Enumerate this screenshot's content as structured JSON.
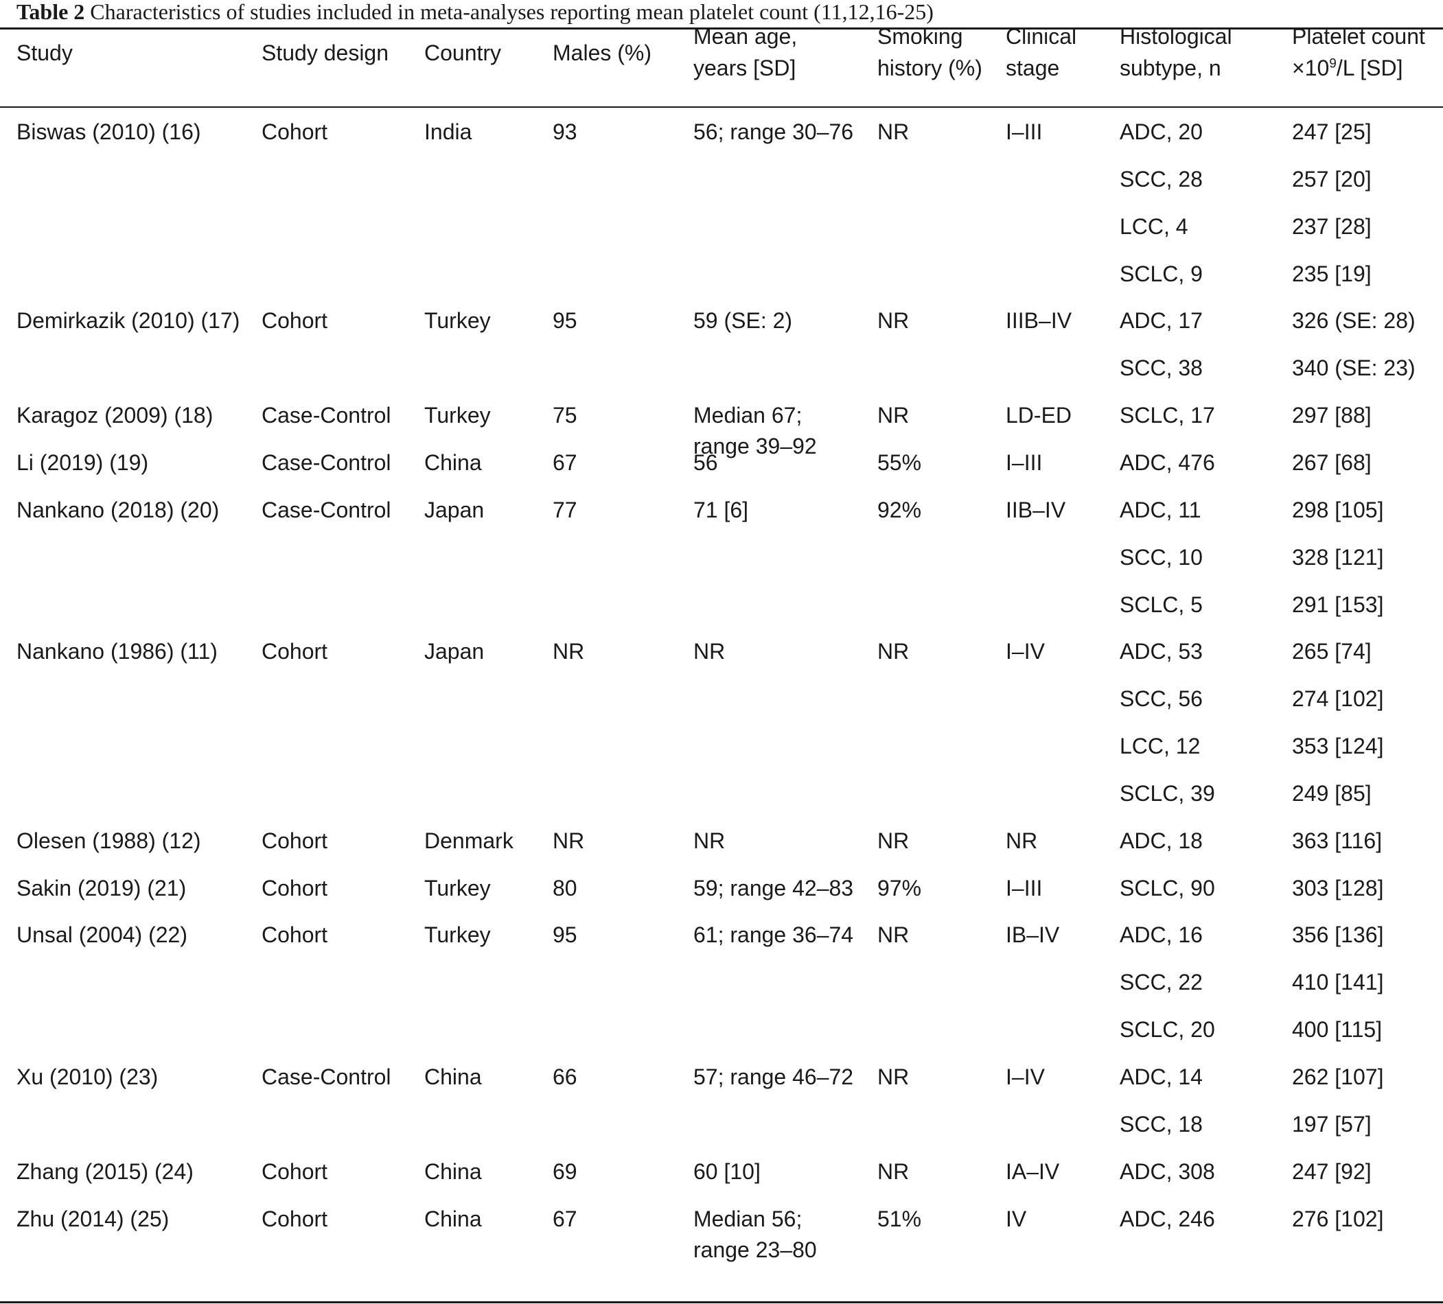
{
  "caption": {
    "label": "Table 2",
    "text": " Characteristics of studies included in meta-analyses reporting mean platelet count (11,12,16-25)"
  },
  "headers": [
    [
      "Study"
    ],
    [
      "Study design"
    ],
    [
      "Country"
    ],
    [
      "Males (%)"
    ],
    [
      " Mean age,",
      "years [SD]"
    ],
    [
      "Smoking",
      "history (%)"
    ],
    [
      "Clinical",
      "stage"
    ],
    [
      "Histological",
      "subtype, n"
    ],
    [
      "Platelet count",
      "×10^9/L [SD]"
    ]
  ],
  "rows": [
    [
      "Biswas (2010) (16)",
      "Cohort",
      "India",
      "93",
      "56; range 30–76",
      "NR",
      "I–III",
      "ADC, 20",
      "247 [25]"
    ],
    [
      "",
      "",
      "",
      "",
      "",
      "",
      "",
      "SCC, 28",
      "257 [20]"
    ],
    [
      "",
      "",
      "",
      "",
      "",
      "",
      "",
      "LCC, 4",
      "237 [28]"
    ],
    [
      "",
      "",
      "",
      "",
      "",
      "",
      "",
      "SCLC, 9",
      "235 [19]"
    ],
    [
      "Demirkazik (2010) (17)",
      "Cohort",
      "Turkey",
      "95",
      "59 (SE: 2)",
      "NR",
      "IIIB–IV",
      "ADC, 17",
      "326 (SE: 28)"
    ],
    [
      "",
      "",
      "",
      "",
      "",
      "",
      "",
      "SCC, 38",
      "340 (SE: 23)"
    ],
    [
      "Karagoz (2009) (18)",
      "Case-Control",
      "Turkey",
      "75",
      "Median 67;\nrange 39–92",
      "NR",
      "LD-ED",
      "SCLC, 17",
      "297 [88]"
    ],
    [
      "Li (2019) (19)",
      "Case-Control",
      "China",
      "67",
      "56",
      "55%",
      "I–III",
      "ADC, 476",
      "267 [68]"
    ],
    [
      "Nankano (2018) (20)",
      "Case-Control",
      "Japan",
      "77",
      "71 [6]",
      "92%",
      "IIB–IV",
      "ADC, 11",
      "298 [105]"
    ],
    [
      "",
      "",
      "",
      "",
      "",
      "",
      "",
      "SCC, 10",
      "328 [121]"
    ],
    [
      "",
      "",
      "",
      "",
      "",
      "",
      "",
      "SCLC, 5",
      "291 [153]"
    ],
    [
      "Nankano (1986) (11)",
      "Cohort",
      "Japan",
      "NR",
      "NR",
      "NR",
      "I–IV",
      "ADC, 53",
      "265 [74]"
    ],
    [
      "",
      "",
      "",
      "",
      "",
      "",
      "",
      "SCC, 56",
      "274 [102]"
    ],
    [
      "",
      "",
      "",
      "",
      "",
      "",
      "",
      "LCC, 12",
      "353 [124]"
    ],
    [
      "",
      "",
      "",
      "",
      "",
      "",
      "",
      "SCLC, 39",
      "249 [85]"
    ],
    [
      "Olesen (1988) (12)",
      "Cohort",
      "Denmark",
      "NR",
      "NR",
      "NR",
      "NR",
      "ADC, 18",
      "363 [116]"
    ],
    [
      "Sakin (2019) (21)",
      "Cohort",
      "Turkey",
      "80",
      "59; range 42–83",
      "97%",
      "I–III",
      "SCLC, 90",
      "303 [128]"
    ],
    [
      "Unsal (2004) (22)",
      "Cohort",
      "Turkey",
      "95",
      "61; range 36–74",
      "NR",
      "IB–IV",
      "ADC, 16",
      "356 [136]"
    ],
    [
      "",
      "",
      "",
      "",
      "",
      "",
      "",
      "SCC, 22",
      "410 [141]"
    ],
    [
      "",
      "",
      "",
      "",
      "",
      "",
      "",
      "SCLC, 20",
      "400 [115]"
    ],
    [
      "Xu (2010) (23)",
      "Case-Control",
      "China",
      "66",
      "57; range 46–72",
      "NR",
      "I–IV",
      "ADC, 14",
      "262 [107]"
    ],
    [
      "",
      "",
      "",
      "",
      "",
      "",
      "",
      "SCC, 18",
      "197 [57]"
    ],
    [
      "Zhang (2015) (24)",
      "Cohort",
      "China",
      "69",
      "60 [10]",
      "NR",
      "IA–IV",
      "ADC, 308",
      "247 [92]"
    ],
    [
      "Zhu (2014) (25)",
      "Cohort",
      "China",
      "67",
      "Median 56;\nrange 23–80",
      "51%",
      "IV",
      "ADC, 246",
      "276 [102]"
    ]
  ]
}
